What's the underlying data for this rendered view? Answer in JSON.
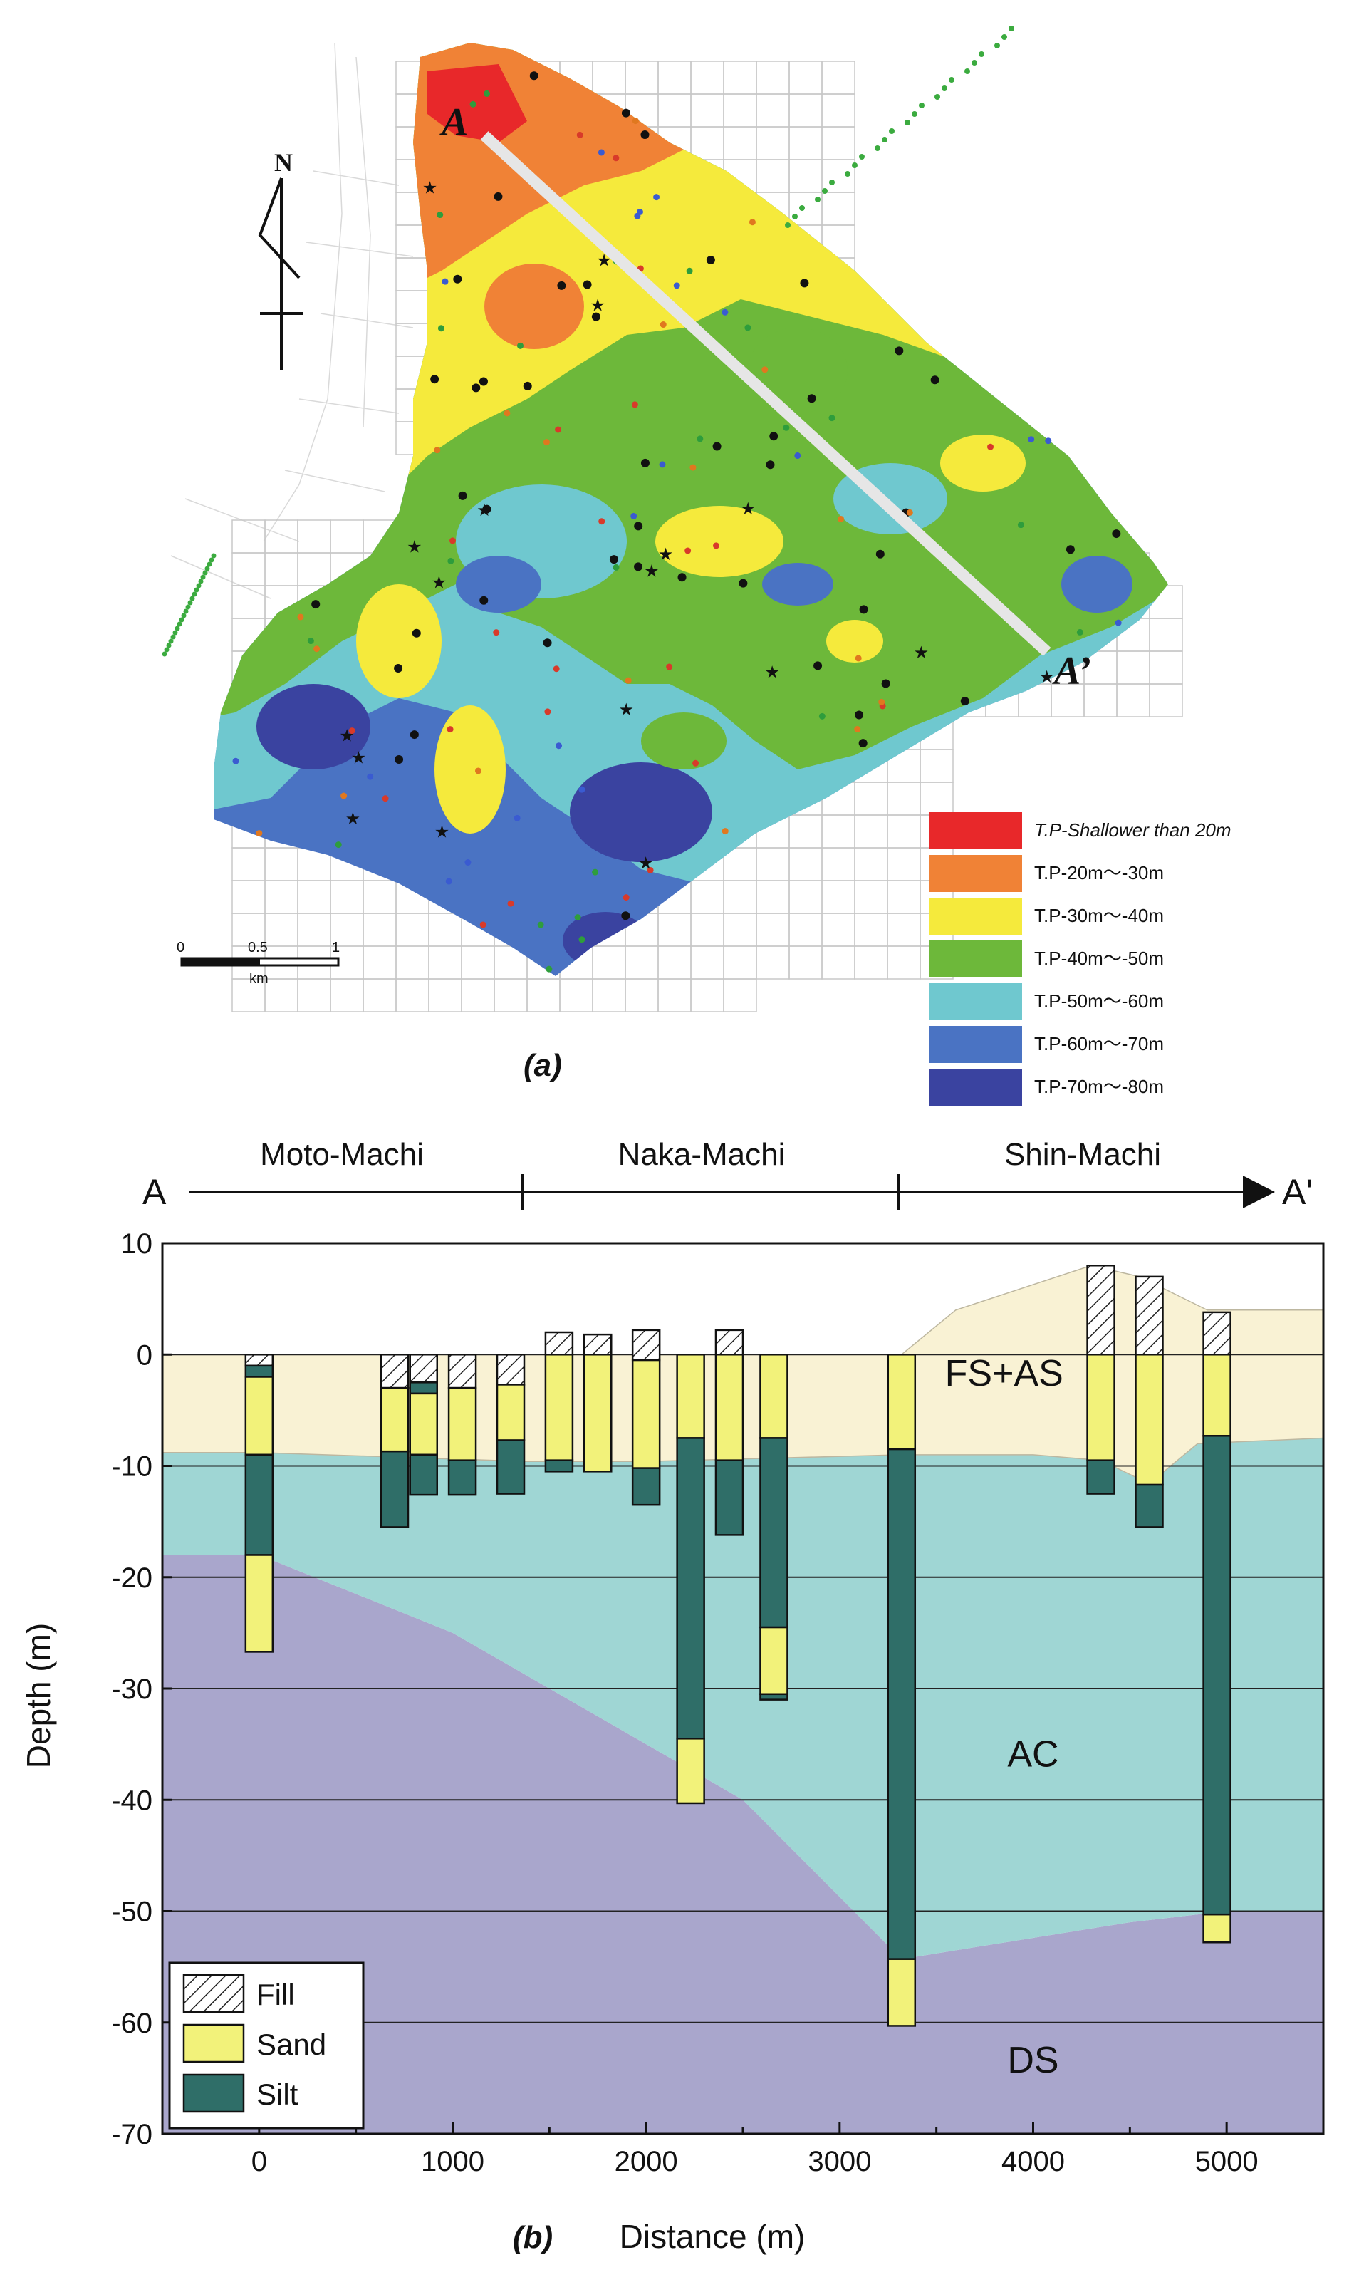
{
  "panel_a": {
    "label": "(a)",
    "north_label": "N",
    "section_start_label": "A",
    "section_end_label": "A’",
    "scale_bar": {
      "ticks": [
        "0",
        "0.5",
        "1"
      ],
      "unit": "km"
    },
    "legend": [
      {
        "label": "T.P-Shallower than 20m",
        "color": "#e8282a"
      },
      {
        "label": "T.P-20m～-30m",
        "color": "#f08236"
      },
      {
        "label": "T.P-30m～-40m",
        "color": "#f5ea3c"
      },
      {
        "label": "T.P-40m～-50m",
        "color": "#6db83a"
      },
      {
        "label": "T.P-50m～-60m",
        "color": "#6fc8cf"
      },
      {
        "label": "T.P-60m～-70m",
        "color": "#4a73c3"
      },
      {
        "label": "T.P-70m～-80m",
        "color": "#3a43a0"
      }
    ]
  },
  "panel_b": {
    "label": "(b)",
    "section_start": "A",
    "section_end": "A'",
    "districts": [
      "Moto-Machi",
      "Naka-Machi",
      "Shin-Machi"
    ],
    "xlabel": "Distance (m)",
    "ylabel": "Depth (m)",
    "layer_labels": {
      "upper": "FS+AS",
      "middle": "AC",
      "lower": "DS"
    },
    "legend": [
      {
        "label": "Fill",
        "pattern": "hatch"
      },
      {
        "label": "Sand",
        "color": "#f2f27a"
      },
      {
        "label": "Silt",
        "color": "#2f6e68"
      }
    ],
    "colors": {
      "fs_as": "#f9f2d4",
      "ac": "#9fd6d4",
      "ds": "#a9a6cc",
      "sand": "#f2f27a",
      "silt": "#2f6e68"
    }
  },
  "chart_data": {
    "type": "geologic-cross-section",
    "title": "",
    "xlabel": "Distance (m)",
    "ylabel": "Depth (m)",
    "xlim": [
      -500,
      5500
    ],
    "ylim": [
      -70,
      10
    ],
    "x_ticks": [
      0,
      1000,
      2000,
      3000,
      4000,
      5000
    ],
    "y_ticks": [
      10,
      0,
      -10,
      -20,
      -30,
      -40,
      -50,
      -60,
      -70
    ],
    "grid": "horizontal",
    "district_boundaries": [
      1380,
      3320
    ],
    "layer_boundaries": {
      "surface": [
        [
          -500,
          0
        ],
        [
          3320,
          0
        ],
        [
          3600,
          4
        ],
        [
          4300,
          8
        ],
        [
          4550,
          7
        ],
        [
          4900,
          4
        ],
        [
          5500,
          4
        ]
      ],
      "fs_as_base": [
        [
          -500,
          -8.8
        ],
        [
          0,
          -8.8
        ],
        [
          1380,
          -9.6
        ],
        [
          2000,
          -9.6
        ],
        [
          3320,
          -9
        ],
        [
          4000,
          -9
        ],
        [
          4350,
          -9.5
        ],
        [
          4600,
          -11.6
        ],
        [
          4850,
          -8
        ],
        [
          5500,
          -7.5
        ]
      ],
      "ac_base": [
        [
          -500,
          -18
        ],
        [
          0,
          -18
        ],
        [
          1000,
          -25
        ],
        [
          2000,
          -35
        ],
        [
          2500,
          -40
        ],
        [
          3320,
          -54.3
        ],
        [
          4500,
          -51
        ],
        [
          5000,
          -50
        ],
        [
          5500,
          -50
        ]
      ]
    },
    "boreholes": [
      {
        "x": 0,
        "layers": [
          {
            "type": "fill",
            "top": 0,
            "bottom": -1
          },
          {
            "type": "silt",
            "top": -1,
            "bottom": -2
          },
          {
            "type": "sand",
            "top": -2,
            "bottom": -9
          },
          {
            "type": "silt",
            "top": -9,
            "bottom": -18
          },
          {
            "type": "sand",
            "top": -18,
            "bottom": -26.7
          }
        ]
      },
      {
        "x": 700,
        "layers": [
          {
            "type": "fill",
            "top": 0,
            "bottom": -3
          },
          {
            "type": "sand",
            "top": -3,
            "bottom": -8.7
          },
          {
            "type": "silt",
            "top": -8.7,
            "bottom": -15.5
          }
        ]
      },
      {
        "x": 850,
        "layers": [
          {
            "type": "fill",
            "top": 0,
            "bottom": -2.5
          },
          {
            "type": "silt",
            "top": -2.5,
            "bottom": -3.5
          },
          {
            "type": "sand",
            "top": -3.5,
            "bottom": -9
          },
          {
            "type": "silt",
            "top": -9,
            "bottom": -12.6
          }
        ]
      },
      {
        "x": 1050,
        "layers": [
          {
            "type": "fill",
            "top": 0,
            "bottom": -3
          },
          {
            "type": "sand",
            "top": -3,
            "bottom": -9.5
          },
          {
            "type": "silt",
            "top": -9.5,
            "bottom": -12.6
          }
        ]
      },
      {
        "x": 1300,
        "layers": [
          {
            "type": "fill",
            "top": 0,
            "bottom": -2.7
          },
          {
            "type": "sand",
            "top": -2.7,
            "bottom": -7.7
          },
          {
            "type": "silt",
            "top": -7.7,
            "bottom": -12.5
          }
        ]
      },
      {
        "x": 1550,
        "layers": [
          {
            "type": "fill",
            "top": 2,
            "bottom": 0
          },
          {
            "type": "sand",
            "top": 0,
            "bottom": -9.5
          },
          {
            "type": "silt",
            "top": -9.5,
            "bottom": -10.5
          }
        ]
      },
      {
        "x": 1750,
        "layers": [
          {
            "type": "fill",
            "top": 1.8,
            "bottom": 0
          },
          {
            "type": "sand",
            "top": 0,
            "bottom": -10.5
          }
        ]
      },
      {
        "x": 2000,
        "layers": [
          {
            "type": "fill",
            "top": 2.2,
            "bottom": -0.5
          },
          {
            "type": "sand",
            "top": -0.5,
            "bottom": -10.2
          },
          {
            "type": "silt",
            "top": -10.2,
            "bottom": -13.5
          }
        ]
      },
      {
        "x": 2230,
        "layers": [
          {
            "type": "sand",
            "top": 0,
            "bottom": -7.5
          },
          {
            "type": "silt",
            "top": -7.5,
            "bottom": -34.5
          },
          {
            "type": "sand",
            "top": -34.5,
            "bottom": -40.3
          }
        ]
      },
      {
        "x": 2430,
        "layers": [
          {
            "type": "fill",
            "top": 2.2,
            "bottom": 0
          },
          {
            "type": "sand",
            "top": 0,
            "bottom": -9.5
          },
          {
            "type": "silt",
            "top": -9.5,
            "bottom": -16.2
          }
        ]
      },
      {
        "x": 2660,
        "layers": [
          {
            "type": "sand",
            "top": 0,
            "bottom": -7.5
          },
          {
            "type": "silt",
            "top": -7.5,
            "bottom": -24.5
          },
          {
            "type": "sand",
            "top": -24.5,
            "bottom": -30.5
          },
          {
            "type": "silt",
            "top": -30.5,
            "bottom": -31
          }
        ]
      },
      {
        "x": 3320,
        "layers": [
          {
            "type": "sand",
            "top": 0,
            "bottom": -8.5
          },
          {
            "type": "silt",
            "top": -8.5,
            "bottom": -54.3
          },
          {
            "type": "sand",
            "top": -54.3,
            "bottom": -60.3
          }
        ]
      },
      {
        "x": 4350,
        "layers": [
          {
            "type": "fill",
            "top": 8,
            "bottom": 0
          },
          {
            "type": "sand",
            "top": 0,
            "bottom": -9.5
          },
          {
            "type": "silt",
            "top": -9.5,
            "bottom": -12.5
          }
        ]
      },
      {
        "x": 4600,
        "layers": [
          {
            "type": "fill",
            "top": 7,
            "bottom": 0
          },
          {
            "type": "sand",
            "top": 0,
            "bottom": -11.7
          },
          {
            "type": "silt",
            "top": -11.7,
            "bottom": -15.5
          }
        ]
      },
      {
        "x": 4950,
        "layers": [
          {
            "type": "fill",
            "top": 3.8,
            "bottom": 0
          },
          {
            "type": "sand",
            "top": 0,
            "bottom": -7.3
          },
          {
            "type": "silt",
            "top": -7.3,
            "bottom": -50.3
          },
          {
            "type": "sand",
            "top": -50.3,
            "bottom": -52.8
          }
        ]
      }
    ]
  }
}
